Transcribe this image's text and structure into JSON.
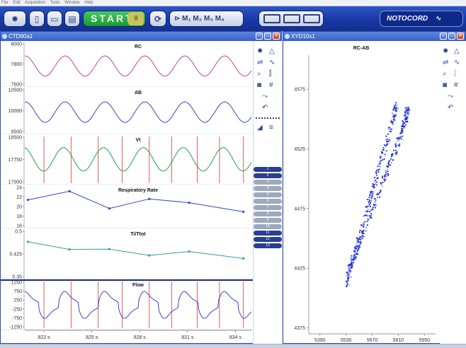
{
  "menu": [
    "File",
    "Edit",
    "Acquisition",
    "Tools",
    "Window",
    "Help"
  ],
  "toolbar": {
    "start_label": "START",
    "pause_label": "II",
    "marks_label": "M₁ M₂ M₃ M₄",
    "brand_label": "NOTOCORD",
    "brand_icon": "heartbeat-icon",
    "icons": [
      "settings-icon",
      "new-file-icon",
      "open-folder-icon",
      "print-icon",
      "refresh-icon",
      "marker-icon",
      "layout-icon"
    ]
  },
  "windows": {
    "left": {
      "title": "CTD60a1"
    },
    "right": {
      "title": "XYD10x1"
    }
  },
  "chart_data": [
    {
      "type": "line",
      "title": "RC",
      "ylim": [
        7600,
        8100
      ],
      "yticks": [
        "8000",
        "7800",
        "7600"
      ],
      "color": "#c0409c",
      "period": 2.5,
      "phase": 0.6,
      "values_desc": [
        7700,
        7950
      ]
    },
    {
      "type": "line",
      "title": "AB",
      "ylim": [
        9500,
        10500
      ],
      "yticks": [
        "10500",
        "10000",
        "9500"
      ],
      "color": "#3344c8",
      "period": 2.5,
      "phase": 0.6,
      "values_desc": [
        9720,
        10210
      ]
    },
    {
      "type": "line",
      "title": "Vt",
      "ylim": [
        17000,
        18500
      ],
      "yticks": [
        "18500",
        "17750",
        "17000"
      ],
      "color": "#1aa050",
      "period": 2.5,
      "phase": 0.7,
      "values_desc": [
        17360,
        18150
      ]
    },
    {
      "type": "line",
      "title": "Respiratory Rate",
      "ylim": [
        16,
        24
      ],
      "yticks": [
        "24",
        "22",
        "20",
        "18",
        "16"
      ],
      "color": "#3344c8",
      "x": [
        821.0,
        823.6,
        826.1,
        828.6,
        831.1,
        834.5
      ],
      "y": [
        21.4,
        23.2,
        19.6,
        21.6,
        20.8,
        18.9
      ]
    },
    {
      "type": "line",
      "title": "Ti/Ttot",
      "ylim": [
        0.35,
        0.5
      ],
      "yticks": [
        "0.5",
        "0.425",
        "0.35"
      ],
      "color": "#30a0a0",
      "x": [
        821.0,
        823.6,
        826.1,
        828.6,
        831.1,
        834.5
      ],
      "y": [
        0.465,
        0.44,
        0.441,
        0.42,
        0.433,
        0.41
      ]
    },
    {
      "type": "line",
      "title": "Flow",
      "ylim": [
        -1350,
        1350
      ],
      "yticks": [
        "1250",
        "750",
        "250",
        "-250",
        "-750",
        "-1250"
      ],
      "color": "#3344c8",
      "period": 2.5,
      "phase": 0.4,
      "values_desc": [
        -1100,
        1050
      ],
      "x_ticks": [
        "822 s",
        "825 s",
        "828 s",
        "831 s",
        "834 s"
      ],
      "x_range": [
        820.8,
        835.0
      ]
    },
    {
      "type": "scatter",
      "title": "RC-AB",
      "xlim": [
        5330,
        6010
      ],
      "ylim": [
        4370,
        4600
      ],
      "xticks": [
        "5390",
        "5530",
        "5670",
        "5810",
        "5950"
      ],
      "yticks": [
        "4575",
        "4525",
        "4475",
        "4425",
        "4375"
      ],
      "color": "#2233cc",
      "loop_lower": {
        "x": [
          5535,
          5560,
          5600,
          5650,
          5700,
          5750,
          5785,
          5800
        ],
        "y": [
          4410,
          4428,
          4450,
          4478,
          4505,
          4532,
          4552,
          4562
        ]
      },
      "loop_upper": {
        "x": [
          5540,
          5580,
          5640,
          5710,
          5780,
          5830,
          5855,
          5860
        ],
        "y": [
          4420,
          4438,
          4462,
          4490,
          4518,
          4540,
          4553,
          4558
        ]
      }
    }
  ],
  "marker_pills": [
    "1",
    "2",
    "3",
    "4",
    "5",
    "6",
    "7",
    "8",
    "9",
    "10",
    "11",
    "12",
    "13"
  ]
}
